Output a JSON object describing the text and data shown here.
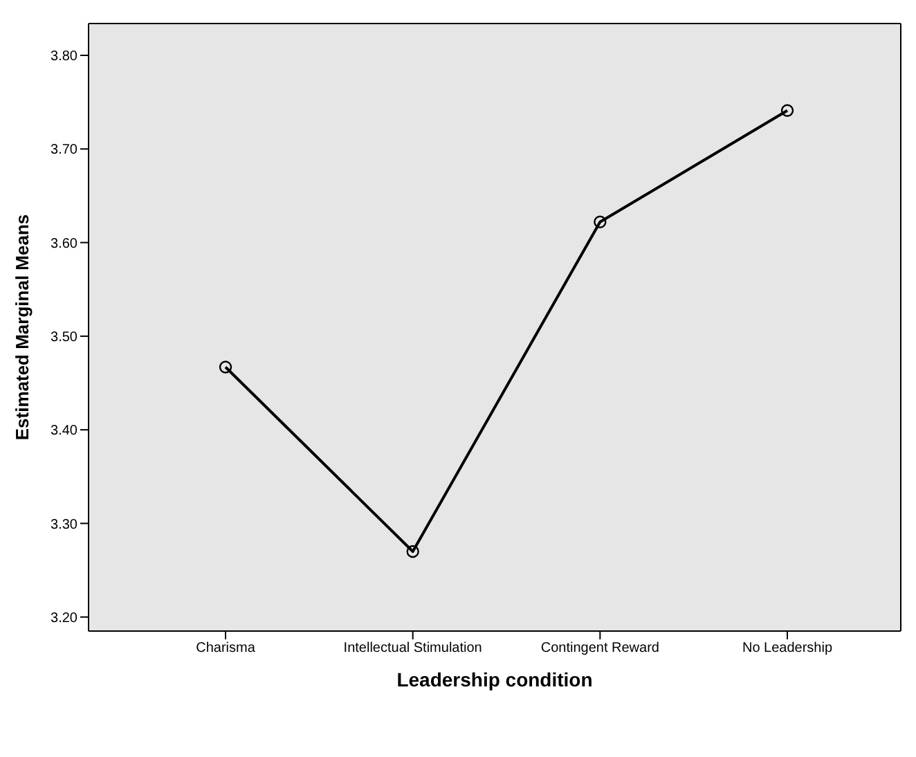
{
  "chart_data": {
    "type": "line",
    "xlabel": "Leadership condition",
    "ylabel": "Estimated Marginal Means",
    "categories": [
      "Charisma",
      "Intellectual Stimulation",
      "Contingent Reward",
      "No Leadership"
    ],
    "series": [
      {
        "color": "#000000",
        "values": [
          3.467,
          3.27,
          3.622,
          3.741
        ]
      }
    ],
    "ylim": [
      3.185,
      3.834
    ],
    "yticks": [
      {
        "value": 3.2,
        "label": "3.20"
      },
      {
        "value": 3.3,
        "label": "3.30"
      },
      {
        "value": 3.4,
        "label": "3.40"
      },
      {
        "value": 3.5,
        "label": "3.50"
      },
      {
        "value": 3.6,
        "label": "3.60"
      },
      {
        "value": 3.7,
        "label": "3.70"
      },
      {
        "value": 3.8,
        "label": "3.80"
      }
    ],
    "grid": false,
    "marker": "circle",
    "line_style": "solid"
  }
}
